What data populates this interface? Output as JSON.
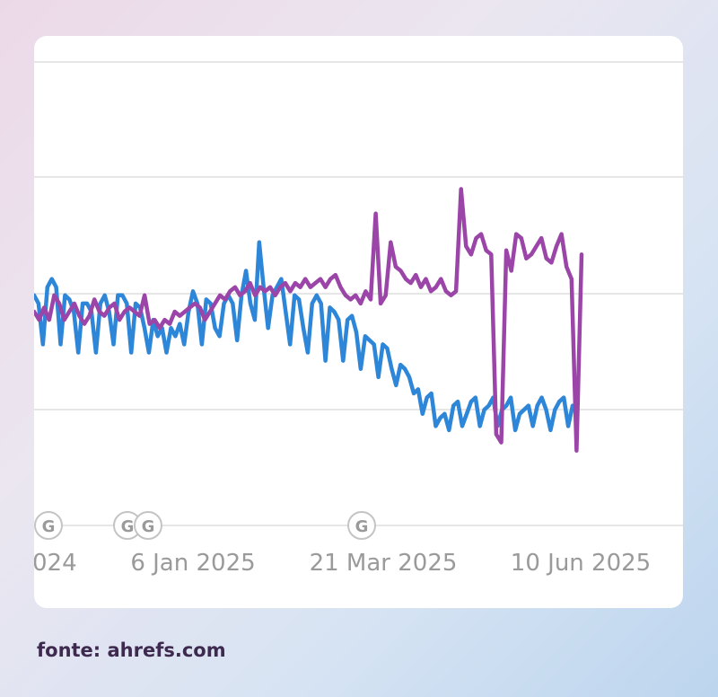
{
  "chart_data": {
    "type": "line",
    "x_tick_labels": [
      "024",
      "6 Jan 2025",
      "21 Mar 2025",
      "10 Jun 2025"
    ],
    "update_markers": [
      "G",
      "G",
      "G",
      "G"
    ],
    "series": [
      {
        "name": "blue",
        "color": "#2e86d8",
        "values": [
          24,
          22,
          12,
          26,
          28,
          26,
          12,
          24,
          23,
          20,
          10,
          22,
          22,
          20,
          10,
          22,
          24,
          20,
          12,
          24,
          24,
          22,
          10,
          22,
          21,
          16,
          10,
          18,
          14,
          16,
          10,
          16,
          14,
          17,
          12,
          20,
          25,
          22,
          12,
          23,
          22,
          16,
          14,
          22,
          24,
          22,
          13,
          24,
          30,
          22,
          18,
          37,
          26,
          16,
          24,
          26,
          28,
          20,
          12,
          24,
          23,
          16,
          10,
          22,
          24,
          22,
          8,
          21,
          20,
          18,
          8,
          18,
          19,
          15,
          6,
          14,
          13,
          12,
          4,
          12,
          11,
          6,
          2,
          7,
          6,
          4,
          0,
          1,
          -5,
          -1,
          0,
          -8,
          -6,
          -5,
          -9,
          -3,
          -2,
          -8,
          -5,
          -2,
          -1,
          -8,
          -4,
          -3,
          -1,
          -8,
          -4,
          -3,
          -1,
          -9,
          -5,
          -4,
          -3,
          -8,
          -3,
          -1,
          -4,
          -9,
          -4,
          -2,
          -1,
          -8,
          -3
        ]
      },
      {
        "name": "purple",
        "color": "#9b45a8",
        "values": [
          20,
          18,
          21,
          18,
          24,
          22,
          18,
          20,
          22,
          19,
          17,
          19,
          23,
          20,
          19,
          21,
          22,
          18,
          20,
          21,
          20,
          19,
          24,
          17,
          18,
          16,
          18,
          17,
          20,
          19,
          20,
          21,
          22,
          21,
          18,
          20,
          22,
          24,
          23,
          25,
          26,
          24,
          25,
          27,
          24,
          26,
          25,
          26,
          24,
          26,
          27,
          25,
          27,
          26,
          28,
          26,
          27,
          28,
          26,
          28,
          29,
          26,
          24,
          23,
          24,
          22,
          25,
          23,
          44,
          22,
          24,
          37,
          31,
          30,
          28,
          27,
          29,
          26,
          28,
          25,
          26,
          28,
          25,
          24,
          25,
          50,
          36,
          34,
          38,
          39,
          35,
          34,
          -10,
          -12,
          35,
          30,
          39,
          38,
          33,
          34,
          36,
          38,
          33,
          32,
          36,
          39,
          31,
          28,
          -14,
          34
        ]
      }
    ]
  },
  "source": {
    "prefix": "fonte: ",
    "brand": "ahrefs.com"
  }
}
